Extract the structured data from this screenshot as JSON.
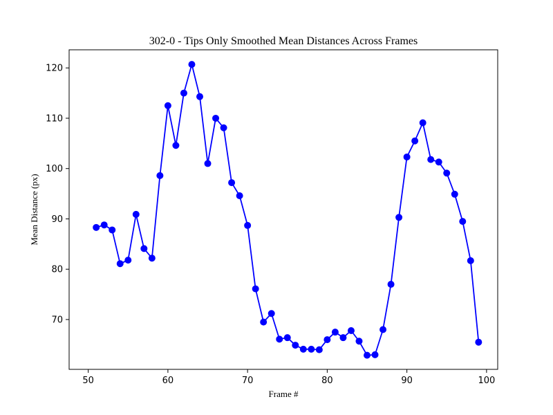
{
  "chart_data": {
    "type": "line",
    "title": "302-0 - Tips Only Smoothed Mean Distances Across Frames",
    "xlabel": "Frame #",
    "ylabel": "Mean Distance (px)",
    "xlim": [
      47.6,
      101.4
    ],
    "ylim": [
      60.1,
      123.6
    ],
    "xticks": [
      50,
      60,
      70,
      80,
      90,
      100
    ],
    "yticks": [
      70,
      80,
      90,
      100,
      110,
      120
    ],
    "grid": false,
    "color": "#0000ff",
    "marker": "circle",
    "series": [
      {
        "x": [
          51,
          52,
          53,
          54,
          55,
          56,
          57,
          58,
          59,
          60,
          61,
          62,
          63,
          64,
          65,
          66,
          67,
          68,
          69,
          70,
          71,
          72,
          73,
          74,
          75,
          76,
          77,
          78,
          79,
          80,
          81,
          82,
          83,
          84,
          85,
          86,
          87,
          88,
          89,
          90,
          91,
          92,
          93,
          94,
          95,
          96,
          97,
          98,
          99
        ],
        "values": [
          88.3,
          88.8,
          87.8,
          81.1,
          81.8,
          90.9,
          84.1,
          82.2,
          98.6,
          112.5,
          104.6,
          115.0,
          120.7,
          114.3,
          101.0,
          110.0,
          108.1,
          97.2,
          94.6,
          88.7,
          76.1,
          69.5,
          71.2,
          66.1,
          66.4,
          64.9,
          64.1,
          64.1,
          64.0,
          66.0,
          67.5,
          66.4,
          67.8,
          65.7,
          62.9,
          63.0,
          68.0,
          77.0,
          90.3,
          102.3,
          105.5,
          109.1,
          101.8,
          101.3,
          99.1,
          94.9,
          89.5,
          81.7,
          65.5
        ]
      }
    ]
  }
}
